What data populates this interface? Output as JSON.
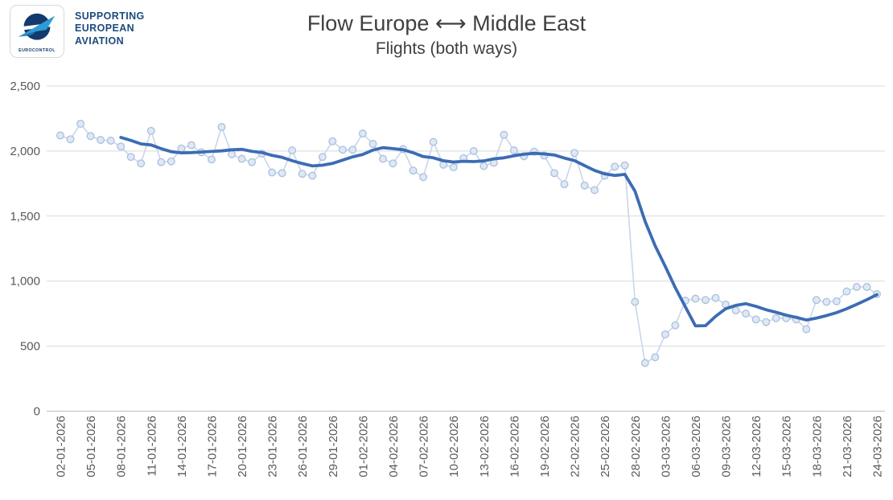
{
  "header": {
    "logo": {
      "brand": "EUROCONTROL",
      "tagline_lines": [
        "SUPPORTING",
        "EUROPEAN",
        "AVIATION"
      ]
    },
    "title": "Flow Europe ⟷ Middle East",
    "subtitle": "Flights (both ways)"
  },
  "chart_data": {
    "type": "line",
    "title": "Flow Europe ⟷ Middle East",
    "subtitle": "Flights (both ways)",
    "xlabel": "",
    "ylabel": "",
    "ylim": [
      0,
      2500
    ],
    "y_ticks": [
      0,
      500,
      1000,
      1500,
      2000,
      2500
    ],
    "y_tick_labels": [
      "0",
      "500",
      "1,000",
      "1,500",
      "2,000",
      "2,500"
    ],
    "grid": "horizontal",
    "legend_position": "none",
    "x_tick_every_days": 3,
    "x_tick_labels": [
      "02-01-2026",
      "05-01-2026",
      "08-01-2026",
      "11-01-2026",
      "14-01-2026",
      "17-01-2026",
      "20-01-2026",
      "23-01-2026",
      "26-01-2026",
      "29-01-2026",
      "01-02-2026",
      "04-02-2026",
      "07-02-2026",
      "10-02-2026",
      "13-02-2026",
      "16-02-2026",
      "19-02-2026",
      "22-02-2026",
      "25-02-2026",
      "28-02-2026",
      "03-03-2026",
      "06-03-2026",
      "09-03-2026",
      "12-03-2026",
      "15-03-2026",
      "18-03-2026",
      "21-03-2026",
      "24-03-2026"
    ],
    "series": [
      {
        "name": "daily-flights",
        "style": "light line with circle markers",
        "color": "#c8d6eb",
        "marker_fill": "#dfe8f4",
        "marker_stroke": "#aac0de",
        "values": [
          2120,
          2090,
          2210,
          2115,
          2085,
          2080,
          2035,
          1955,
          1905,
          2155,
          1915,
          1920,
          2020,
          2045,
          1990,
          1935,
          2185,
          1975,
          1940,
          1915,
          1980,
          1835,
          1830,
          2005,
          1825,
          1810,
          1955,
          2075,
          2010,
          2010,
          2135,
          2055,
          1940,
          1905,
          2015,
          1850,
          1800,
          2070,
          1895,
          1875,
          1945,
          2000,
          1885,
          1910,
          2125,
          2005,
          1960,
          1995,
          1965,
          1830,
          1745,
          1985,
          1735,
          1700,
          1810,
          1880,
          1890,
          840,
          370,
          415,
          590,
          660,
          850,
          865,
          855,
          870,
          820,
          775,
          750,
          705,
          685,
          715,
          715,
          705,
          630,
          855,
          840,
          845,
          920,
          955,
          955,
          900
        ]
      },
      {
        "name": "7-day-average-trend",
        "style": "thick smooth line, starts on 7th day",
        "color": "#3c6cb4",
        "derived_from": "trailing 7-day mean of daily-flights"
      }
    ]
  }
}
